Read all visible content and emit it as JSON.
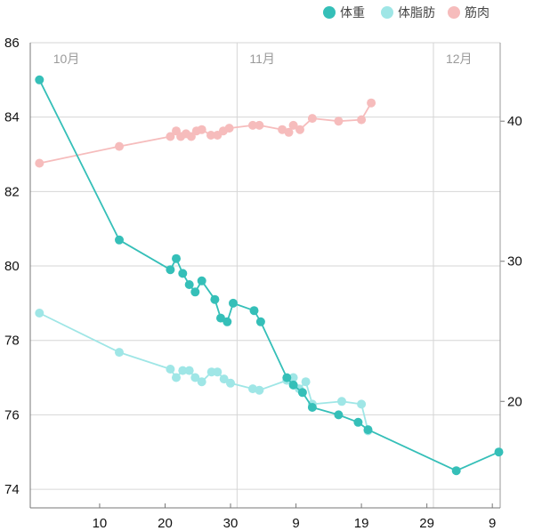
{
  "chart_data": {
    "type": "line",
    "legend_position": "top-right",
    "legend": [
      {
        "label": "体重",
        "color": "#35bfb8"
      },
      {
        "label": "体脂肪",
        "color": "#9fe6e6"
      },
      {
        "label": "筋肉",
        "color": "#f6bcbc"
      }
    ],
    "month_labels": [
      {
        "label": "10月",
        "x": 1
      },
      {
        "label": "11月",
        "x": 31
      },
      {
        "label": "12月",
        "x": 61
      }
    ],
    "x_tick_labels": [
      {
        "label": "10",
        "x": 10
      },
      {
        "label": "20",
        "x": 20
      },
      {
        "label": "30",
        "x": 30
      },
      {
        "label": "9",
        "x": 40
      },
      {
        "label": "19",
        "x": 50
      },
      {
        "label": "29",
        "x": 60
      },
      {
        "label": "9",
        "x": 70
      }
    ],
    "xlim": [
      -0.6,
      71.2
    ],
    "y_left": {
      "ticks": [
        "74",
        "76",
        "78",
        "80",
        "82",
        "84",
        "86"
      ],
      "ylim": [
        73.5,
        86
      ]
    },
    "y_right": {
      "ticks": [
        "20",
        "30",
        "40"
      ],
      "ylim": [
        12.4,
        45.6
      ]
    },
    "grid": true,
    "series": [
      {
        "name": "体重",
        "axis": "left",
        "color": "#35bfb8",
        "points": [
          [
            0.8,
            85.0
          ],
          [
            13,
            80.7
          ],
          [
            20.8,
            79.9
          ],
          [
            21.7,
            80.2
          ],
          [
            22.7,
            79.8
          ],
          [
            23.7,
            79.5
          ],
          [
            24.6,
            79.3
          ],
          [
            25.6,
            79.6
          ],
          [
            27.6,
            79.1
          ],
          [
            28.5,
            78.6
          ],
          [
            29.5,
            78.5
          ],
          [
            30.4,
            79.0
          ],
          [
            33.6,
            78.8
          ],
          [
            34.6,
            78.5
          ],
          [
            38.6,
            77.0
          ],
          [
            39.6,
            76.8
          ],
          [
            41.0,
            76.6
          ],
          [
            42.5,
            76.2
          ],
          [
            46.5,
            76.0
          ],
          [
            49.5,
            75.8
          ],
          [
            51.0,
            75.6
          ],
          [
            64.5,
            74.5
          ],
          [
            71.0,
            75.0
          ]
        ]
      },
      {
        "name": "体脂肪",
        "axis": "right",
        "color": "#9fe6e6",
        "points": [
          [
            0.8,
            26.3
          ],
          [
            13,
            23.5
          ],
          [
            20.8,
            22.3
          ],
          [
            21.7,
            21.7
          ],
          [
            22.7,
            22.2
          ],
          [
            23.7,
            22.2
          ],
          [
            24.6,
            21.7
          ],
          [
            25.6,
            21.4
          ],
          [
            27.1,
            22.1
          ],
          [
            28.0,
            22.1
          ],
          [
            29.0,
            21.6
          ],
          [
            30.0,
            21.3
          ],
          [
            33.4,
            20.9
          ],
          [
            34.4,
            20.8
          ],
          [
            38.6,
            21.5
          ],
          [
            39.6,
            21.7
          ],
          [
            40.5,
            20.9
          ],
          [
            41.5,
            21.4
          ],
          [
            42.5,
            19.8
          ],
          [
            47.0,
            20.0
          ],
          [
            50.0,
            19.8
          ],
          [
            51.0,
            17.9
          ]
        ]
      },
      {
        "name": "筋肉",
        "axis": "right",
        "color": "#f6bcbc",
        "points": [
          [
            0.8,
            37.0
          ],
          [
            13,
            38.2
          ],
          [
            20.8,
            38.9
          ],
          [
            21.7,
            39.3
          ],
          [
            22.4,
            38.9
          ],
          [
            23.2,
            39.1
          ],
          [
            24.0,
            38.9
          ],
          [
            24.8,
            39.3
          ],
          [
            25.6,
            39.4
          ],
          [
            27.0,
            39.0
          ],
          [
            28.0,
            39.0
          ],
          [
            28.9,
            39.3
          ],
          [
            29.8,
            39.5
          ],
          [
            33.4,
            39.7
          ],
          [
            34.4,
            39.7
          ],
          [
            37.9,
            39.4
          ],
          [
            38.9,
            39.2
          ],
          [
            39.6,
            39.7
          ],
          [
            40.6,
            39.4
          ],
          [
            42.5,
            40.2
          ],
          [
            46.5,
            40.0
          ],
          [
            50.0,
            40.1
          ],
          [
            51.5,
            41.3
          ]
        ]
      }
    ]
  }
}
